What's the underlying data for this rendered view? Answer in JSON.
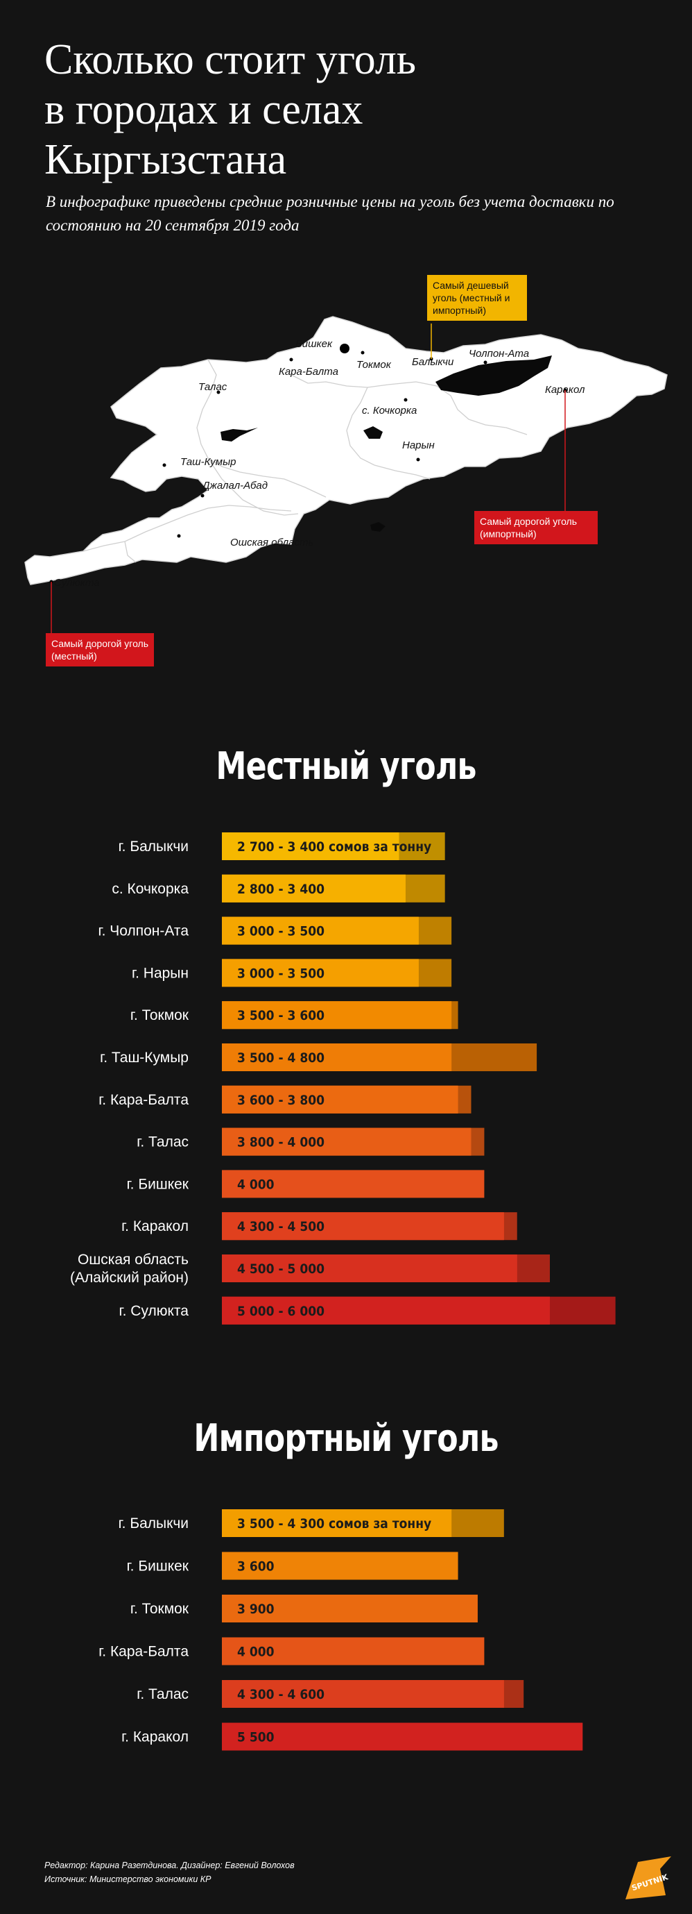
{
  "header": {
    "title_lines": [
      "Сколько стоит уголь",
      "в городах и селах",
      "Кыргызстана"
    ],
    "subtitle": "В инфографике приведены средние розничные цены на уголь без учета доставки по состоянию на 20 сентября 2019 года"
  },
  "map": {
    "cities": [
      "Бишкек",
      "Кара-Балта",
      "Токмок",
      "Балыкчи",
      "Чолпон-Ата",
      "Каракол",
      "Талас",
      "с. Кочкорка",
      "Нарын",
      "Таш-Кумыр",
      "Джалал-Абад",
      "Ошская область",
      "Сулюкта"
    ],
    "callouts": {
      "cheapest": "Самый дешевый уголь (местный и импортный)",
      "expensive_imported": "Самый дорогой уголь (импортный)",
      "expensive_local": "Самый дорогой уголь (местный)"
    },
    "colors": {
      "land": "#ffffff",
      "water": "#0a0a0a",
      "yellow": "#f2b500",
      "red": "#d2161c"
    }
  },
  "chart_data": [
    {
      "type": "bar",
      "title": "Местный уголь",
      "categories": [
        "г. Балыкчи",
        "с. Кочкорка",
        "г. Чолпон-Ата",
        "г. Нарын",
        "г. Токмок",
        "г. Таш-Кумыр",
        "г. Кара-Балта",
        "г. Талас",
        "г. Бишкек",
        "г. Каракол",
        "Ошская область (Алайский район)",
        "г. Сулюкта"
      ],
      "series": [
        {
          "name": "min",
          "values": [
            2700,
            2800,
            3000,
            3000,
            3500,
            3500,
            3600,
            3800,
            4000,
            4300,
            4500,
            5000
          ]
        },
        {
          "name": "max",
          "values": [
            3400,
            3400,
            3500,
            3500,
            3600,
            4800,
            3800,
            4000,
            4000,
            4500,
            5000,
            6000
          ]
        }
      ],
      "value_labels": [
        "2 700 - 3 400 сомов за тонну",
        "2 800 - 3 400",
        "3 000 - 3 500",
        "3 000 - 3 500",
        "3 500 - 3 600",
        "3 500 - 4 800",
        "3 600 - 3 800",
        "3 800 - 4 000",
        "4 000",
        "4 300 - 4 500",
        "4 500 - 5 000",
        "5 000 - 6 000"
      ],
      "colors": [
        "#f6b800",
        "#f6b000",
        "#f5a600",
        "#f59f00",
        "#f28a00",
        "#ef7d06",
        "#ec6a10",
        "#e85e16",
        "#e5501c",
        "#e0401e",
        "#d8301f",
        "#d2221f"
      ]
    },
    {
      "type": "bar",
      "title": "Импортный уголь",
      "categories": [
        "г. Балыкчи",
        "г. Бишкек",
        "г. Токмок",
        "г. Кара-Балта",
        "г. Талас",
        "г. Каракол"
      ],
      "series": [
        {
          "name": "min",
          "values": [
            3500,
            3600,
            3900,
            4000,
            4300,
            5500
          ]
        },
        {
          "name": "max",
          "values": [
            4300,
            3600,
            3900,
            4000,
            4600,
            5500
          ]
        }
      ],
      "value_labels": [
        "3 500 - 4 300 сомов за тонну",
        "3 600",
        "3 900",
        "4 000",
        "4 300 - 4 600",
        "5 500"
      ],
      "colors": [
        "#f39e00",
        "#ef8306",
        "#ea6a10",
        "#e55518",
        "#dc3e1e",
        "#d2221f"
      ]
    }
  ],
  "footer": {
    "editor": "Редактор: Карина Разетдинова. Дизайнер: Евгений Волохов",
    "source": "Источник: Министерство экономики КР"
  },
  "logo": {
    "text": "SPUTNIK",
    "color": "#f29a1a"
  }
}
